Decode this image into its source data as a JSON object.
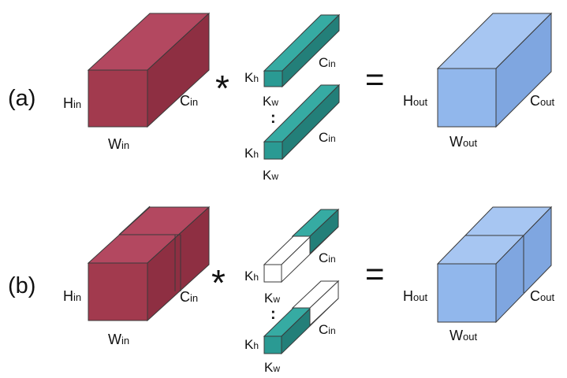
{
  "panels": [
    {
      "tag": "(a)",
      "input": {
        "h": "H",
        "h_sub": "in",
        "w": "W",
        "w_sub": "in",
        "c": "C",
        "c_sub": "in"
      },
      "operator": "*",
      "kernel_1": {
        "h": "K",
        "h_sub": "h",
        "w": "K",
        "w_sub": "w",
        "c": "C",
        "c_sub": "in"
      },
      "ellipsis": ":",
      "kernel_2": {
        "h": "K",
        "h_sub": "h",
        "w": "K",
        "w_sub": "w",
        "c": "C",
        "c_sub": "in"
      },
      "equals": "=",
      "output": {
        "h": "H",
        "h_sub": "out",
        "w": "W",
        "w_sub": "out",
        "c": "C",
        "c_sub": "out"
      }
    },
    {
      "tag": "(b)",
      "input": {
        "h": "H",
        "h_sub": "in",
        "w": "W",
        "w_sub": "in",
        "c": "C",
        "c_sub": "in"
      },
      "operator": "*",
      "kernel_1": {
        "h": "K",
        "h_sub": "h",
        "w": "K",
        "w_sub": "w",
        "c": "C",
        "c_sub": "in"
      },
      "ellipsis": ":",
      "kernel_2": {
        "h": "K",
        "h_sub": "h",
        "w": "K",
        "w_sub": "w",
        "c": "C",
        "c_sub": "in"
      },
      "equals": "=",
      "output": {
        "h": "H",
        "h_sub": "out",
        "w": "W",
        "w_sub": "out",
        "c": "C",
        "c_sub": "out"
      }
    }
  ],
  "colors": {
    "input_front": "#a23a4e",
    "input_top": "#b34860",
    "input_side": "#8e2f42",
    "kernel_front": "#2a9a93",
    "kernel_top": "#36aba3",
    "kernel_side": "#237f79",
    "output_front": "#91b7ec",
    "output_top": "#a7c6f2",
    "output_side": "#7fa6e0",
    "edge": "#3a3a3a"
  }
}
